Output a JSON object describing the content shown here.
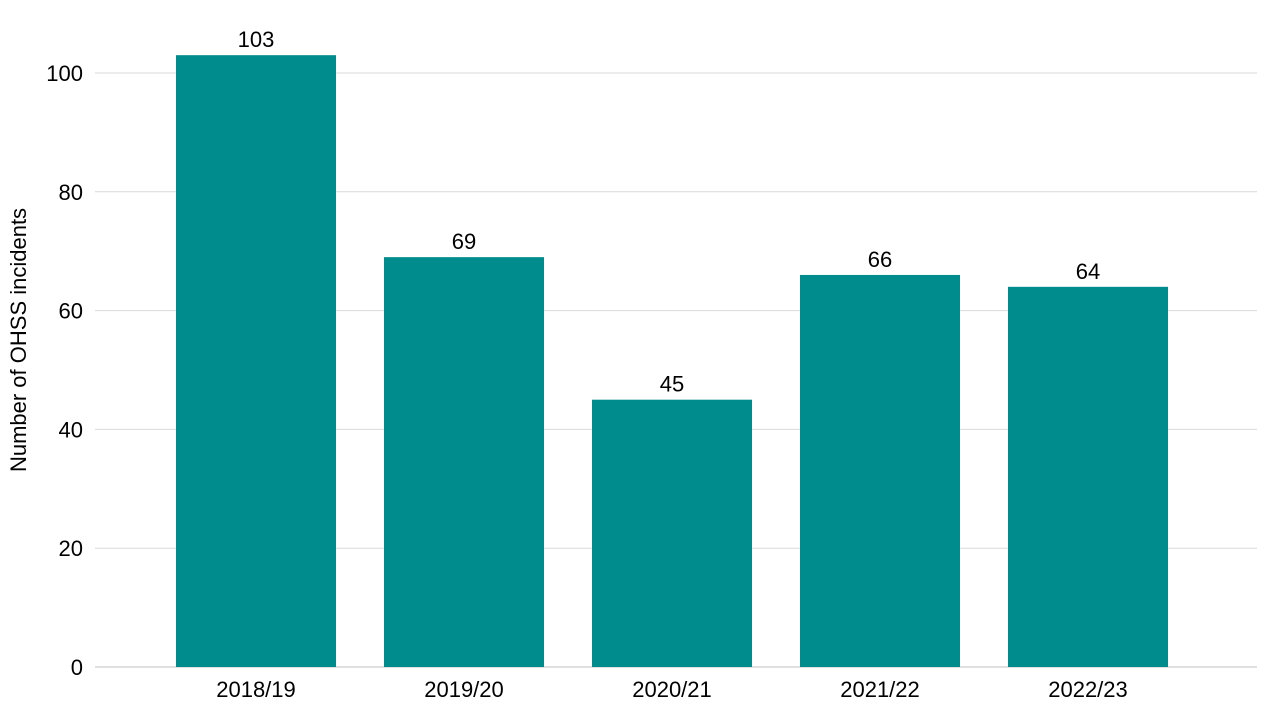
{
  "chart_data": {
    "type": "bar",
    "categories": [
      "2018/19",
      "2019/20",
      "2020/21",
      "2021/22",
      "2022/23"
    ],
    "values": [
      103,
      69,
      45,
      66,
      64
    ],
    "data_labels": [
      "103",
      "69",
      "45",
      "66",
      "64"
    ],
    "title": "",
    "xlabel": "",
    "ylabel": "Number of OHSS incidents",
    "ylim": [
      0,
      105
    ],
    "yticks": [
      0,
      20,
      40,
      60,
      80,
      100
    ],
    "grid": "horizontal",
    "legend": "none",
    "colors": {
      "bar": "#008c8c",
      "grid": "#d9d9d9",
      "baseline": "#c0c0c0"
    }
  }
}
